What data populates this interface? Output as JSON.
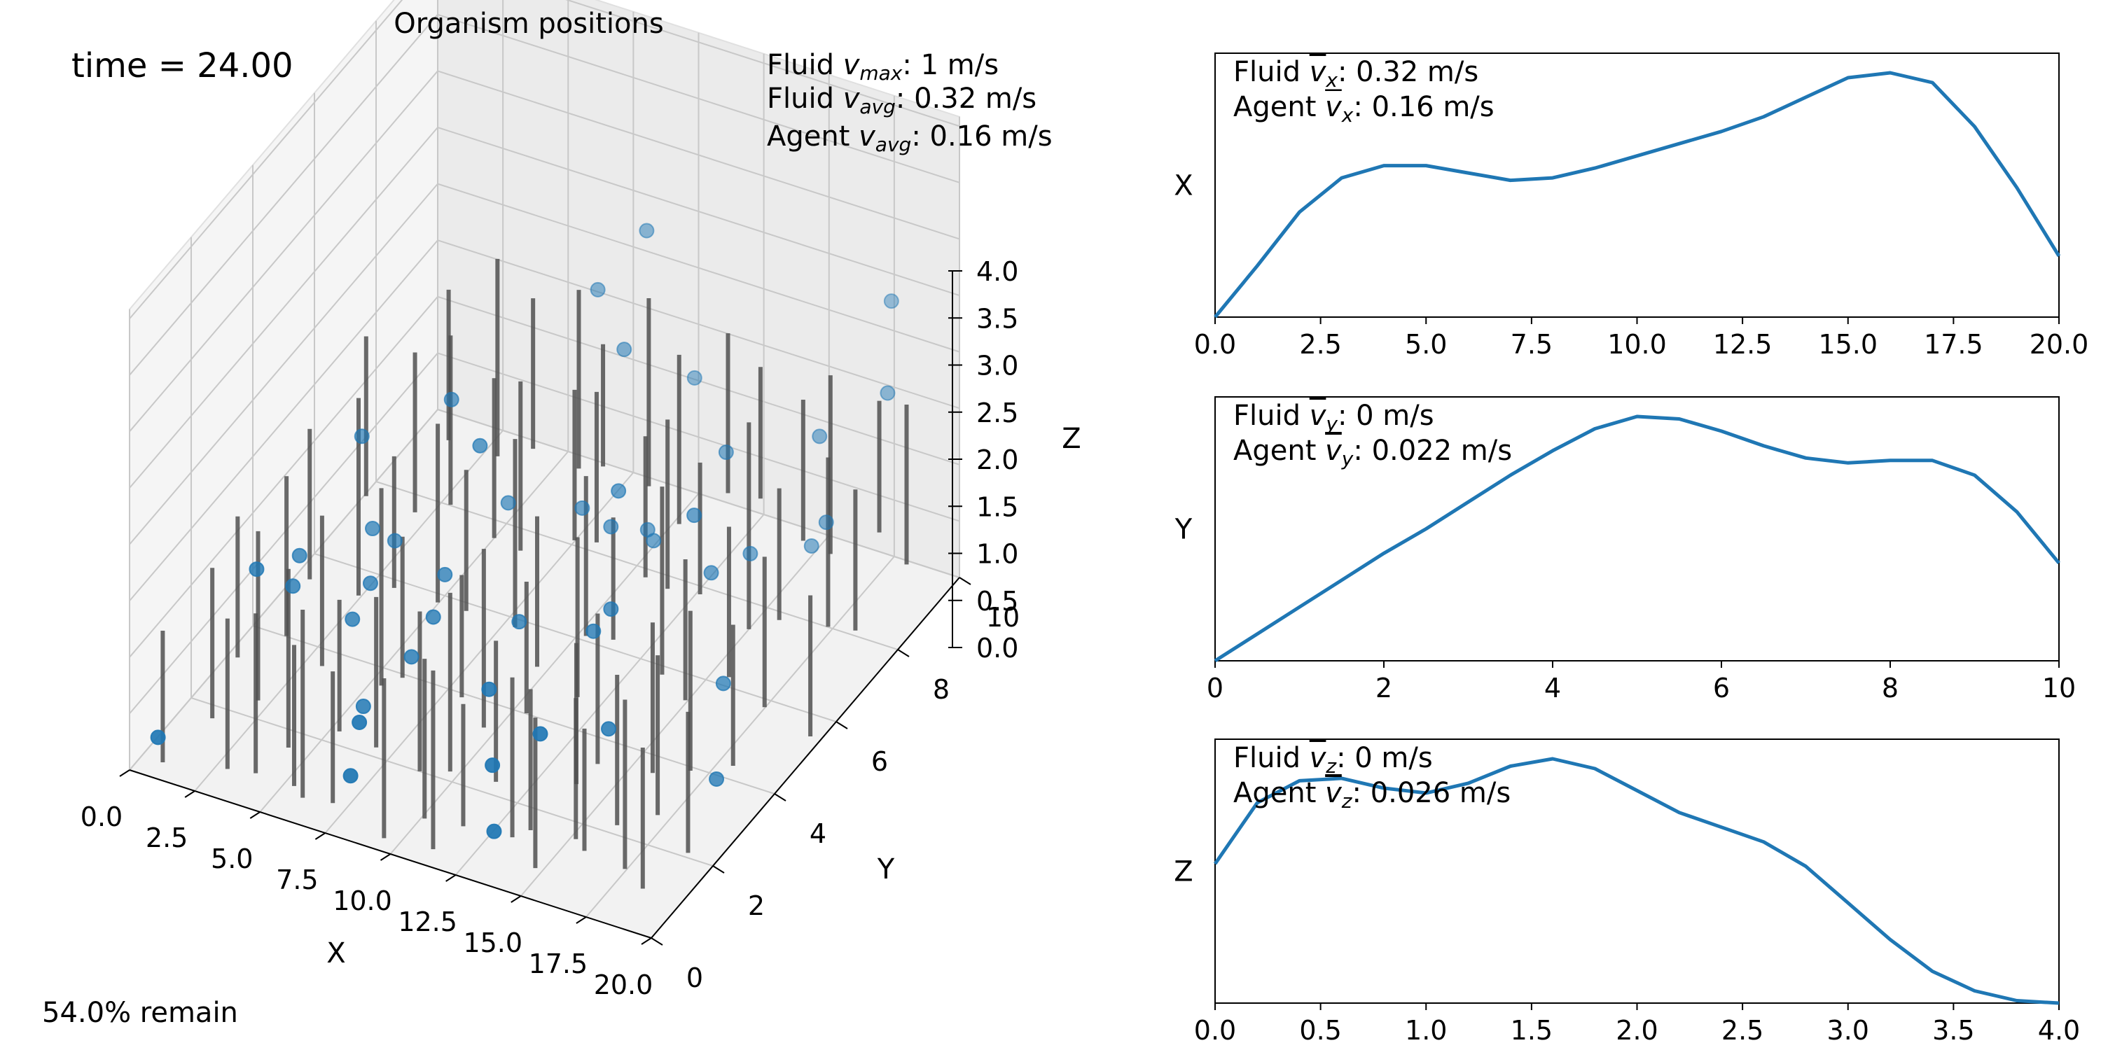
{
  "main": {
    "title": "Organism positions",
    "time_text": "time = 24.00",
    "remain_text": "54.0% remain"
  },
  "stats": {
    "fluid_vmax": {
      "label": "Fluid ",
      "sym": "v",
      "sub": "max",
      "value": ": 1 m/s"
    },
    "fluid_vavg": {
      "label": "Fluid ",
      "sym": "v",
      "sub": "avg",
      "value": ": 0.32 m/s"
    },
    "agent_vavg": {
      "label": "Agent ",
      "sym": "v",
      "sub": "avg",
      "value": ": 0.16 m/s"
    }
  },
  "chart_data": [
    {
      "type": "scatter3d",
      "title": "Organism positions",
      "xlabel": "X",
      "ylabel": "Y",
      "zlabel": "Z",
      "xlim": [
        0,
        20
      ],
      "ylim": [
        0,
        10
      ],
      "zlim": [
        0,
        4
      ],
      "xticks": [
        "0.0",
        "2.5",
        "5.0",
        "7.5",
        "10.0",
        "12.5",
        "15.0",
        "17.5",
        "20.0"
      ],
      "yticks": [
        "0",
        "2",
        "4",
        "6",
        "8",
        "10"
      ],
      "zticks": [
        "0.0",
        "0.5",
        "1.0",
        "1.5",
        "2.0",
        "2.5",
        "3.0",
        "3.5",
        "4.0"
      ],
      "grid": true,
      "point_color": "#1f77b4",
      "stalk_color": "#505050",
      "points": [
        {
          "x": 0.5,
          "y": 0.5,
          "z": 0.2
        },
        {
          "x": 8.0,
          "y": 0.4,
          "z": 0.5
        },
        {
          "x": 8.1,
          "y": 0.6,
          "z": 1.0
        },
        {
          "x": 13.5,
          "y": 0.4,
          "z": 0.4
        },
        {
          "x": 13.2,
          "y": 0.6,
          "z": 1.0
        },
        {
          "x": 14.8,
          "y": 0.8,
          "z": 1.4
        },
        {
          "x": 12.6,
          "y": 1.0,
          "z": 1.6
        },
        {
          "x": 16.0,
          "y": 2.0,
          "z": 1.1
        },
        {
          "x": 1.8,
          "y": 2.6,
          "z": 1.3
        },
        {
          "x": 2.5,
          "y": 3.4,
          "z": 1.2
        },
        {
          "x": 2.6,
          "y": 3.1,
          "z": 1.0
        },
        {
          "x": 5.0,
          "y": 3.0,
          "z": 0.9
        },
        {
          "x": 5.1,
          "y": 3.5,
          "z": 1.1
        },
        {
          "x": 7.5,
          "y": 2.8,
          "z": 0.8
        },
        {
          "x": 7.6,
          "y": 3.8,
          "z": 1.3
        },
        {
          "x": 8.1,
          "y": 3.0,
          "z": 1.2
        },
        {
          "x": 10.8,
          "y": 3.5,
          "z": 1.2
        },
        {
          "x": 14.0,
          "y": 3.2,
          "z": 1.5
        },
        {
          "x": 14.2,
          "y": 3.6,
          "z": 1.6
        },
        {
          "x": 17.8,
          "y": 4.2,
          "z": 0.9
        },
        {
          "x": 4.0,
          "y": 4.5,
          "z": 1.2
        },
        {
          "x": 4.5,
          "y": 4.8,
          "z": 1.0
        },
        {
          "x": 3.0,
          "y": 5.0,
          "z": 1.9
        },
        {
          "x": 8.0,
          "y": 4.6,
          "z": 2.4
        },
        {
          "x": 6.2,
          "y": 5.2,
          "z": 2.5
        },
        {
          "x": 7.9,
          "y": 5.6,
          "z": 1.4
        },
        {
          "x": 10.5,
          "y": 5.8,
          "z": 1.5
        },
        {
          "x": 12.6,
          "y": 5.2,
          "z": 2.1
        },
        {
          "x": 11.6,
          "y": 5.8,
          "z": 1.4
        },
        {
          "x": 13.0,
          "y": 6.0,
          "z": 1.3
        },
        {
          "x": 15.8,
          "y": 5.5,
          "z": 1.4
        },
        {
          "x": 15.5,
          "y": 5.2,
          "z": 2.1
        },
        {
          "x": 12.3,
          "y": 6.4,
          "z": 1.2
        },
        {
          "x": 16.0,
          "y": 6.6,
          "z": 1.2
        },
        {
          "x": 17.4,
          "y": 7.4,
          "z": 1.1
        },
        {
          "x": 18.2,
          "y": 7.2,
          "z": 1.5
        },
        {
          "x": 14.6,
          "y": 7.0,
          "z": 2.0
        },
        {
          "x": 17.0,
          "y": 8.0,
          "z": 2.0
        },
        {
          "x": 18.9,
          "y": 8.6,
          "z": 2.4
        },
        {
          "x": 18.1,
          "y": 9.4,
          "z": 3.0
        },
        {
          "x": 10.1,
          "y": 7.5,
          "z": 2.5
        },
        {
          "x": 8.5,
          "y": 8.0,
          "z": 2.8
        },
        {
          "x": 9.9,
          "y": 8.4,
          "z": 3.4
        },
        {
          "x": 11.5,
          "y": 8.6,
          "z": 1.9
        },
        {
          "x": 18.6,
          "y": 3.3,
          "z": 0.3
        },
        {
          "x": 6.6,
          "y": 2.0,
          "z": 0.5
        }
      ],
      "stalks": [
        {
          "x": 0.8,
          "y": 0.4,
          "z0": 0,
          "z1": 1.4
        },
        {
          "x": 3.4,
          "y": 0.3,
          "z0": 0.2,
          "z1": 1.8
        },
        {
          "x": 4.6,
          "y": 0.2,
          "z0": 0.3,
          "z1": 2.0
        },
        {
          "x": 5.6,
          "y": 0.6,
          "z0": 0.1,
          "z1": 1.6
        },
        {
          "x": 6.4,
          "y": 0.2,
          "z0": 0.2,
          "z1": 2.2
        },
        {
          "x": 7.2,
          "y": 0.5,
          "z0": 0.1,
          "z1": 1.5
        },
        {
          "x": 9.4,
          "y": 0.3,
          "z0": 0.0,
          "z1": 1.7
        },
        {
          "x": 10.6,
          "y": 0.6,
          "z0": 0.2,
          "z1": 1.9
        },
        {
          "x": 11.4,
          "y": 0.2,
          "z0": 0.1,
          "z1": 2.0
        },
        {
          "x": 12.2,
          "y": 0.5,
          "z0": 0.3,
          "z1": 1.6
        },
        {
          "x": 14.2,
          "y": 0.4,
          "z0": 0.4,
          "z1": 2.1
        },
        {
          "x": 15.2,
          "y": 0.3,
          "z0": 0.2,
          "z1": 1.8
        },
        {
          "x": 16.4,
          "y": 0.6,
          "z0": 0.5,
          "z1": 2.0
        },
        {
          "x": 17.2,
          "y": 0.2,
          "z0": 0.6,
          "z1": 1.9
        },
        {
          "x": 18.4,
          "y": 0.5,
          "z0": 0.4,
          "z1": 2.2
        },
        {
          "x": 19.2,
          "y": 0.4,
          "z0": 0.3,
          "z1": 1.8
        },
        {
          "x": 1.4,
          "y": 1.5,
          "z0": 0.1,
          "z1": 1.7
        },
        {
          "x": 2.8,
          "y": 1.8,
          "z0": 0.3,
          "z1": 2.1
        },
        {
          "x": 4.2,
          "y": 1.6,
          "z0": 0.0,
          "z1": 1.9
        },
        {
          "x": 5.8,
          "y": 1.9,
          "z0": 0.2,
          "z1": 1.6
        },
        {
          "x": 7.8,
          "y": 1.4,
          "z0": 0.4,
          "z1": 2.0
        },
        {
          "x": 9.0,
          "y": 1.8,
          "z0": 0.1,
          "z1": 1.8
        },
        {
          "x": 10.4,
          "y": 1.6,
          "z0": 0.3,
          "z1": 2.2
        },
        {
          "x": 11.8,
          "y": 1.9,
          "z0": 0.2,
          "z1": 1.7
        },
        {
          "x": 13.6,
          "y": 1.5,
          "z0": 0.0,
          "z1": 1.5
        },
        {
          "x": 15.0,
          "y": 1.8,
          "z0": 0.5,
          "z1": 2.0
        },
        {
          "x": 16.8,
          "y": 1.6,
          "z0": 0.3,
          "z1": 1.9
        },
        {
          "x": 18.0,
          "y": 1.9,
          "z0": 0.4,
          "z1": 2.1
        },
        {
          "x": 19.4,
          "y": 1.7,
          "z0": 0.2,
          "z1": 1.7
        },
        {
          "x": 0.6,
          "y": 3.0,
          "z0": 0.1,
          "z1": 1.6
        },
        {
          "x": 2.0,
          "y": 3.4,
          "z0": 0.3,
          "z1": 2.0
        },
        {
          "x": 3.6,
          "y": 3.2,
          "z0": 0.2,
          "z1": 1.8
        },
        {
          "x": 5.4,
          "y": 3.6,
          "z0": 0.0,
          "z1": 2.1
        },
        {
          "x": 6.8,
          "y": 3.1,
          "z0": 0.4,
          "z1": 1.9
        },
        {
          "x": 8.6,
          "y": 3.5,
          "z0": 0.2,
          "z1": 1.5
        },
        {
          "x": 9.8,
          "y": 3.2,
          "z0": 0.1,
          "z1": 2.0
        },
        {
          "x": 11.2,
          "y": 3.4,
          "z0": 0.3,
          "z1": 1.7
        },
        {
          "x": 12.8,
          "y": 3.7,
          "z0": 0.5,
          "z1": 2.2
        },
        {
          "x": 14.4,
          "y": 3.0,
          "z0": 0.2,
          "z1": 1.8
        },
        {
          "x": 15.8,
          "y": 3.6,
          "z0": 0.0,
          "z1": 1.6
        },
        {
          "x": 17.6,
          "y": 3.3,
          "z0": 0.3,
          "z1": 2.0
        },
        {
          "x": 19.0,
          "y": 3.5,
          "z0": 0.4,
          "z1": 1.9
        },
        {
          "x": 1.0,
          "y": 5.0,
          "z0": 0.2,
          "z1": 1.8
        },
        {
          "x": 2.4,
          "y": 5.4,
          "z0": 0.0,
          "z1": 2.1
        },
        {
          "x": 4.0,
          "y": 5.2,
          "z0": 0.3,
          "z1": 1.7
        },
        {
          "x": 5.2,
          "y": 5.6,
          "z0": 0.1,
          "z1": 2.0
        },
        {
          "x": 7.0,
          "y": 5.0,
          "z0": 0.4,
          "z1": 1.9
        },
        {
          "x": 8.4,
          "y": 5.4,
          "z0": 0.2,
          "z1": 2.2
        },
        {
          "x": 9.6,
          "y": 5.1,
          "z0": 0.0,
          "z1": 1.6
        },
        {
          "x": 11.0,
          "y": 5.5,
          "z0": 0.3,
          "z1": 2.0
        },
        {
          "x": 12.4,
          "y": 5.2,
          "z0": 0.5,
          "z1": 1.8
        },
        {
          "x": 13.8,
          "y": 5.6,
          "z0": 0.1,
          "z1": 2.1
        },
        {
          "x": 15.4,
          "y": 5.0,
          "z0": 0.2,
          "z1": 1.7
        },
        {
          "x": 16.6,
          "y": 5.4,
          "z0": 0.4,
          "z1": 2.0
        },
        {
          "x": 18.2,
          "y": 5.2,
          "z0": 0.3,
          "z1": 1.9
        },
        {
          "x": 19.6,
          "y": 5.5,
          "z0": 0.0,
          "z1": 1.5
        },
        {
          "x": 0.8,
          "y": 7.0,
          "z0": 0.3,
          "z1": 2.0
        },
        {
          "x": 2.2,
          "y": 7.4,
          "z0": 0.1,
          "z1": 1.8
        },
        {
          "x": 3.8,
          "y": 7.2,
          "z0": 0.4,
          "z1": 2.2
        },
        {
          "x": 5.0,
          "y": 7.6,
          "z0": 0.0,
          "z1": 1.7
        },
        {
          "x": 6.6,
          "y": 7.1,
          "z0": 0.2,
          "z1": 2.0
        },
        {
          "x": 8.2,
          "y": 7.5,
          "z0": 0.3,
          "z1": 1.9
        },
        {
          "x": 9.4,
          "y": 7.2,
          "z0": 0.5,
          "z1": 2.1
        },
        {
          "x": 10.8,
          "y": 7.6,
          "z0": 0.1,
          "z1": 1.6
        },
        {
          "x": 12.0,
          "y": 7.3,
          "z0": 0.2,
          "z1": 2.0
        },
        {
          "x": 13.6,
          "y": 7.0,
          "z0": 0.4,
          "z1": 1.8
        },
        {
          "x": 15.0,
          "y": 7.4,
          "z0": 0.0,
          "z1": 2.2
        },
        {
          "x": 16.4,
          "y": 7.2,
          "z0": 0.3,
          "z1": 1.7
        },
        {
          "x": 17.8,
          "y": 7.6,
          "z0": 0.2,
          "z1": 2.0
        },
        {
          "x": 19.2,
          "y": 7.3,
          "z0": 0.4,
          "z1": 1.9
        },
        {
          "x": 1.6,
          "y": 9.0,
          "z0": 0.2,
          "z1": 1.8
        },
        {
          "x": 3.0,
          "y": 9.4,
          "z0": 0.0,
          "z1": 2.1
        },
        {
          "x": 4.6,
          "y": 9.2,
          "z0": 0.3,
          "z1": 1.9
        },
        {
          "x": 6.0,
          "y": 9.5,
          "z0": 0.1,
          "z1": 2.0
        },
        {
          "x": 7.4,
          "y": 9.1,
          "z0": 0.4,
          "z1": 1.7
        },
        {
          "x": 8.8,
          "y": 9.4,
          "z0": 0.2,
          "z1": 2.2
        },
        {
          "x": 10.2,
          "y": 9.2,
          "z0": 0.0,
          "z1": 1.8
        },
        {
          "x": 11.6,
          "y": 9.6,
          "z0": 0.3,
          "z1": 2.0
        },
        {
          "x": 13.2,
          "y": 9.3,
          "z0": 0.5,
          "z1": 1.9
        },
        {
          "x": 14.6,
          "y": 9.5,
          "z0": 0.1,
          "z1": 1.6
        },
        {
          "x": 16.0,
          "y": 9.2,
          "z0": 0.2,
          "z1": 2.1
        },
        {
          "x": 17.4,
          "y": 9.6,
          "z0": 0.4,
          "z1": 1.8
        },
        {
          "x": 18.8,
          "y": 9.3,
          "z0": 0.3,
          "z1": 2.0
        }
      ]
    },
    {
      "type": "line",
      "ylabel": "X",
      "xlim": [
        0,
        20
      ],
      "xticks": [
        "0.0",
        "2.5",
        "5.0",
        "7.5",
        "10.0",
        "12.5",
        "15.0",
        "17.5",
        "20.0"
      ],
      "annotations": [
        {
          "label": "Fluid ",
          "sym": "v",
          "bar": true,
          "sub": "x",
          "value": ": 0.32 m/s"
        },
        {
          "label": "Agent ",
          "sym": "v",
          "bar": true,
          "sub": "x",
          "value": ": 0.16 m/s"
        }
      ],
      "color": "#1f77b4",
      "x": [
        0,
        1,
        2,
        3,
        4,
        5,
        6,
        7,
        8,
        9,
        10,
        11,
        12,
        13,
        14,
        15,
        16,
        17,
        18,
        19,
        20
      ],
      "y": [
        0.0,
        0.21,
        0.43,
        0.57,
        0.62,
        0.62,
        0.59,
        0.56,
        0.57,
        0.61,
        0.66,
        0.71,
        0.76,
        0.82,
        0.9,
        0.98,
        1.0,
        0.96,
        0.78,
        0.53,
        0.25
      ]
    },
    {
      "type": "line",
      "ylabel": "Y",
      "xlim": [
        0,
        10
      ],
      "xticks": [
        "0",
        "2",
        "4",
        "6",
        "8",
        "10"
      ],
      "annotations": [
        {
          "label": "Fluid ",
          "sym": "v",
          "bar": true,
          "sub": "y",
          "value": ": 0 m/s"
        },
        {
          "label": "Agent ",
          "sym": "v",
          "bar": true,
          "sub": "y",
          "value": ": 0.022 m/s"
        }
      ],
      "color": "#1f77b4",
      "x": [
        0,
        0.5,
        1,
        1.5,
        2,
        2.5,
        3,
        3.5,
        4,
        4.5,
        5,
        5.5,
        6,
        6.5,
        7,
        7.5,
        8,
        8.5,
        9,
        9.5,
        10
      ],
      "y": [
        0.0,
        0.11,
        0.22,
        0.33,
        0.44,
        0.54,
        0.65,
        0.76,
        0.86,
        0.95,
        1.0,
        0.99,
        0.94,
        0.88,
        0.83,
        0.81,
        0.82,
        0.82,
        0.76,
        0.61,
        0.4
      ]
    },
    {
      "type": "line",
      "ylabel": "Z",
      "xlim": [
        0,
        4
      ],
      "xticks": [
        "0.0",
        "0.5",
        "1.0",
        "1.5",
        "2.0",
        "2.5",
        "3.0",
        "3.5",
        "4.0"
      ],
      "annotations": [
        {
          "label": "Fluid ",
          "sym": "v",
          "bar": true,
          "sub": "z",
          "value": ": 0 m/s"
        },
        {
          "label": "Agent ",
          "sym": "v",
          "bar": true,
          "sub": "z",
          "value": ": 0.026 m/s"
        }
      ],
      "color": "#1f77b4",
      "x": [
        0,
        0.2,
        0.4,
        0.6,
        0.8,
        1.0,
        1.2,
        1.4,
        1.6,
        1.8,
        2.0,
        2.2,
        2.4,
        2.6,
        2.8,
        3.0,
        3.2,
        3.4,
        3.6,
        3.8,
        4.0
      ],
      "y": [
        0.57,
        0.82,
        0.91,
        0.92,
        0.88,
        0.86,
        0.9,
        0.97,
        1.0,
        0.96,
        0.87,
        0.78,
        0.72,
        0.66,
        0.56,
        0.41,
        0.26,
        0.13,
        0.05,
        0.01,
        0.0
      ]
    }
  ]
}
